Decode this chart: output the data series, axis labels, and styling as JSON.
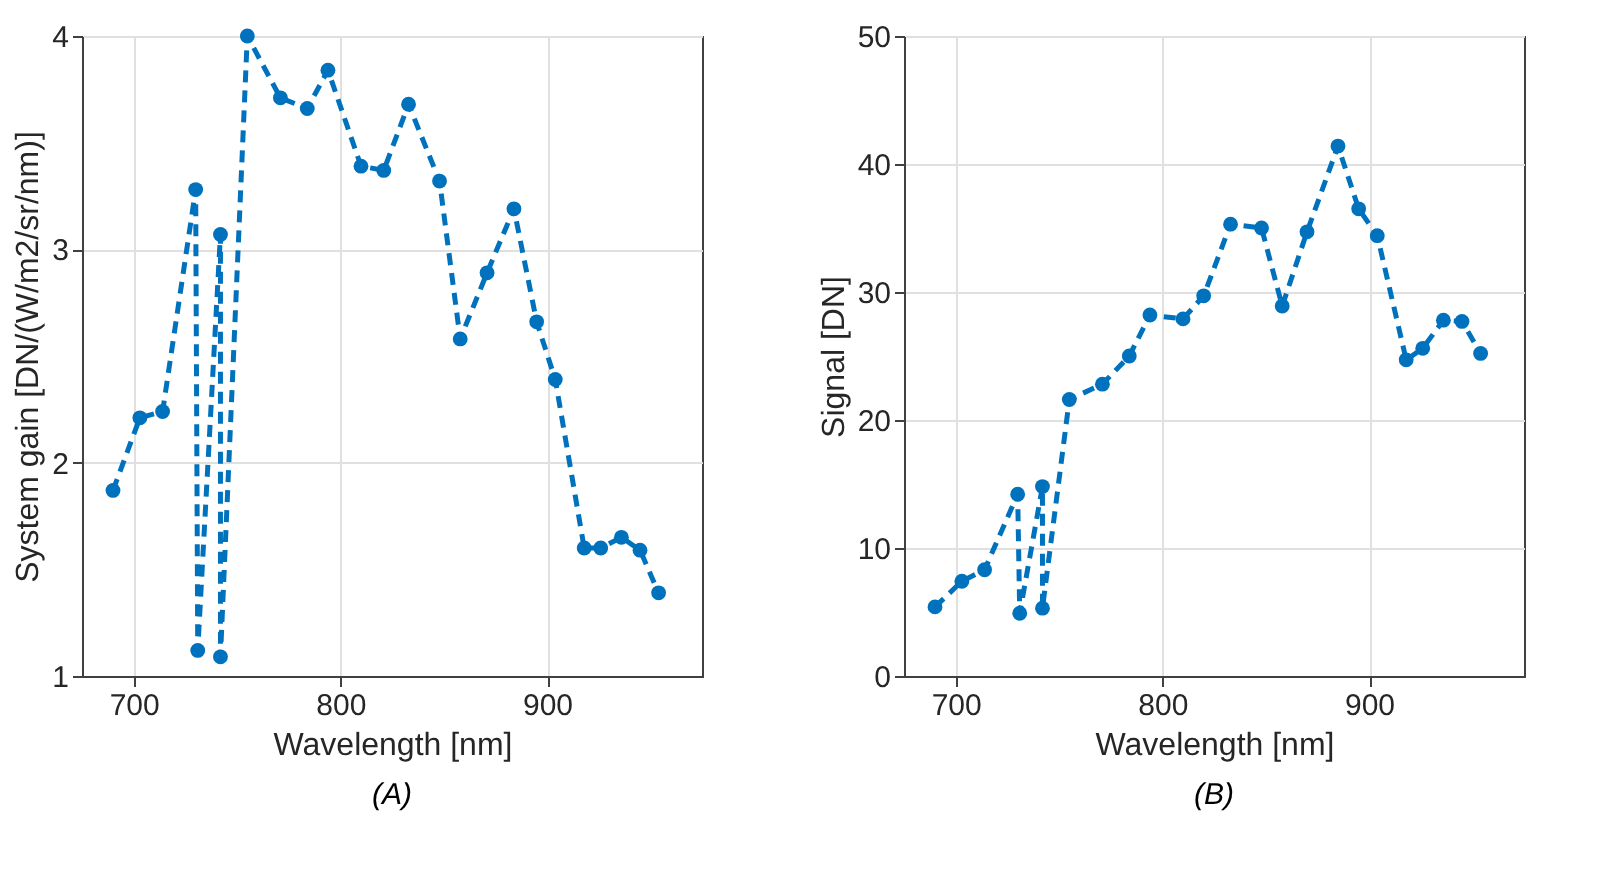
{
  "chart_data": [
    {
      "type": "line",
      "xlabel": "Wavelength [nm]",
      "ylabel": "System gain [DN/(W/m2/sr/nm)]",
      "annotations": [
        "(A)"
      ],
      "xlim": [
        675,
        975
      ],
      "xticks": [
        700,
        800,
        900
      ],
      "ylim": [
        1,
        4
      ],
      "yticks": [
        1,
        2,
        3,
        4
      ],
      "grid": true,
      "marker": "circle",
      "line_style": "dashed",
      "series": [
        {
          "color": "#0072bd",
          "x": [
            690,
            703,
            714,
            730,
            731,
            742,
            742,
            755,
            771,
            784,
            794,
            810,
            821,
            833,
            848,
            858,
            871,
            884,
            895,
            904,
            918,
            926,
            936,
            945,
            954
          ],
          "values": [
            1.87,
            2.21,
            2.24,
            3.28,
            1.12,
            3.07,
            1.09,
            4.0,
            3.71,
            3.66,
            3.84,
            3.39,
            3.37,
            3.68,
            3.32,
            2.58,
            2.89,
            3.19,
            2.66,
            2.39,
            1.6,
            1.6,
            1.65,
            1.59,
            1.39
          ]
        }
      ]
    },
    {
      "type": "line",
      "xlabel": "Wavelength [nm]",
      "ylabel": "Signal [DN]",
      "annotations": [
        "(B)"
      ],
      "xlim": [
        675,
        975
      ],
      "xticks": [
        700,
        800,
        900
      ],
      "ylim": [
        0,
        50
      ],
      "yticks": [
        0,
        10,
        20,
        30,
        40,
        50
      ],
      "grid": true,
      "marker": "circle",
      "line_style": "dashed",
      "series": [
        {
          "color": "#0072bd",
          "x": [
            690,
            703,
            714,
            730,
            731,
            742,
            742,
            755,
            771,
            784,
            794,
            810,
            820,
            833,
            848,
            858,
            870,
            885,
            895,
            904,
            918,
            926,
            936,
            945,
            954
          ],
          "values": [
            5.4,
            7.4,
            8.3,
            14.2,
            4.9,
            14.8,
            5.3,
            21.6,
            22.8,
            25.0,
            28.2,
            27.9,
            29.7,
            35.3,
            35.0,
            28.9,
            34.7,
            41.4,
            36.5,
            34.4,
            24.7,
            25.6,
            27.8,
            27.7,
            25.2
          ]
        }
      ]
    }
  ]
}
